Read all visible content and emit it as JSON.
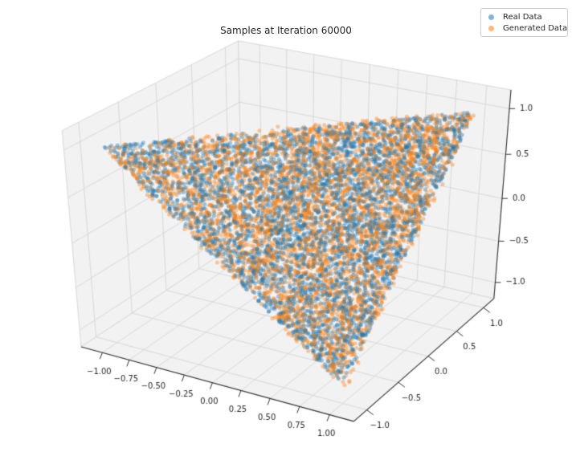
{
  "chart_data": {
    "type": "scatter3d",
    "title": "Samples at Iteration 60000",
    "legend": {
      "position": "upper right",
      "items": [
        "Real Data",
        "Generated Data"
      ]
    },
    "series": [
      {
        "name": "Real Data",
        "color": "#1f77b4",
        "alpha": 0.4,
        "n_points": 4200,
        "marker_diameter_px": 5
      },
      {
        "name": "Generated Data",
        "color": "#ff7f0e",
        "alpha": 0.4,
        "n_points": 4200,
        "marker_diameter_px": 5
      }
    ],
    "data_support": {
      "shape": "triangle",
      "plane": "x - y + z = 1",
      "vertices": [
        [
          -1,
          -1,
          1
        ],
        [
          1,
          1,
          1
        ],
        [
          1,
          -1,
          -1
        ]
      ],
      "distribution": "uniform",
      "generated_noise": 0.02
    },
    "axes": {
      "x": {
        "ticks": [
          -1,
          -0.75,
          -0.5,
          -0.25,
          0,
          0.25,
          0.5,
          0.75,
          1
        ],
        "ticklabels": [
          "−1.00",
          "−0.75",
          "−0.50",
          "−0.25",
          "0.00",
          "0.25",
          "0.50",
          "0.75",
          "1.00"
        ],
        "limits": [
          -1.2,
          1.2
        ]
      },
      "y": {
        "ticks": [
          -1,
          -0.5,
          0,
          0.5,
          1
        ],
        "ticklabels": [
          "−1.0",
          "−0.5",
          "0.0",
          "0.5",
          "1.0"
        ],
        "limits": [
          -1.2,
          1.2
        ]
      },
      "z": {
        "ticks": [
          -1,
          -0.5,
          0,
          0.5,
          1
        ],
        "ticklabels": [
          "−1.0",
          "−0.5",
          "0.0",
          "0.5",
          "1.0"
        ],
        "limits": [
          -1.2,
          1.2
        ]
      }
    },
    "view": {
      "elev": 30,
      "azim": -60
    },
    "colors": {
      "background": "#ffffff",
      "pane": "#f2f2f3",
      "grid": "#d2d2d2",
      "pane_edge": "#d9d9d9",
      "axis_line": "#333333",
      "text": "#262626",
      "legend_border": "#cccccc"
    }
  }
}
